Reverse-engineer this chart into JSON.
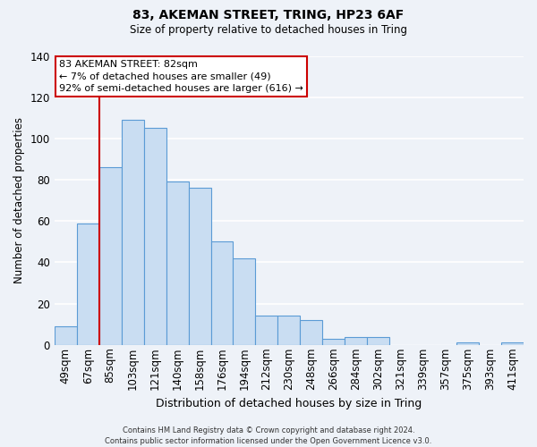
{
  "title": "83, AKEMAN STREET, TRING, HP23 6AF",
  "subtitle": "Size of property relative to detached houses in Tring",
  "xlabel": "Distribution of detached houses by size in Tring",
  "ylabel": "Number of detached properties",
  "bin_labels": [
    "49sqm",
    "67sqm",
    "85sqm",
    "103sqm",
    "121sqm",
    "140sqm",
    "158sqm",
    "176sqm",
    "194sqm",
    "212sqm",
    "230sqm",
    "248sqm",
    "266sqm",
    "284sqm",
    "302sqm",
    "321sqm",
    "339sqm",
    "357sqm",
    "375sqm",
    "393sqm",
    "411sqm"
  ],
  "bar_values": [
    9,
    59,
    86,
    109,
    105,
    79,
    76,
    50,
    42,
    14,
    14,
    12,
    3,
    4,
    4,
    0,
    0,
    0,
    1,
    0,
    1
  ],
  "bar_color": "#c9ddf2",
  "bar_edge_color": "#5b9bd5",
  "ylim": [
    0,
    140
  ],
  "yticks": [
    0,
    20,
    40,
    60,
    80,
    100,
    120,
    140
  ],
  "vline_color": "#cc0000",
  "annotation_text": "83 AKEMAN STREET: 82sqm\n← 7% of detached houses are smaller (49)\n92% of semi-detached houses are larger (616) →",
  "annotation_box_color": "#ffffff",
  "annotation_box_edge_color": "#cc0000",
  "background_color": "#eef2f8",
  "grid_color": "#ffffff",
  "footer_text": "Contains HM Land Registry data © Crown copyright and database right 2024.\nContains public sector information licensed under the Open Government Licence v3.0."
}
